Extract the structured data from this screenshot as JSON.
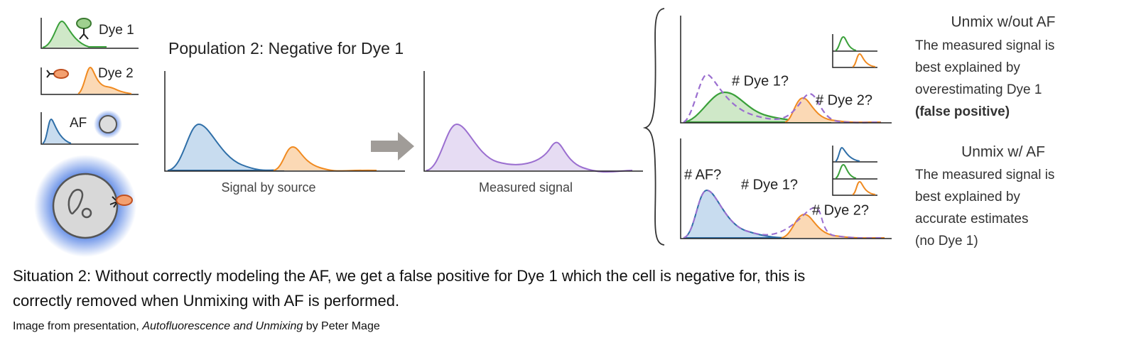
{
  "legend": [
    {
      "label": "Dye 1"
    },
    {
      "label": "Dye 2"
    },
    {
      "label": "AF"
    }
  ],
  "population_title": "Population 2: Negative for Dye 1",
  "plots": {
    "source_label": "Signal by source",
    "measured_label": "Measured signal"
  },
  "unmix_without_af": {
    "title": "Unmix w/out AF",
    "annotations": [
      "# Dye 1?",
      "# Dye 2?"
    ],
    "description": [
      "The measured signal is",
      "best explained by",
      "overestimating Dye 1",
      "(false positive)"
    ]
  },
  "unmix_with_af": {
    "title": "Unmix w/ AF",
    "annotations": [
      "# AF?",
      "# Dye 1?",
      "# Dye 2?"
    ],
    "description": [
      "The measured signal is",
      "best explained by",
      "accurate estimates",
      "(no Dye 1)"
    ]
  },
  "caption": {
    "lines": [
      "Situation 2: Without correctly modeling the AF, we get a false positive for Dye 1 which the cell is negative for, this is",
      "correctly removed when Unmixing with AF is performed."
    ],
    "credit": [
      "Image from presentation,",
      "Autofluorescence and Unmixing",
      "by Peter Mage"
    ]
  }
}
